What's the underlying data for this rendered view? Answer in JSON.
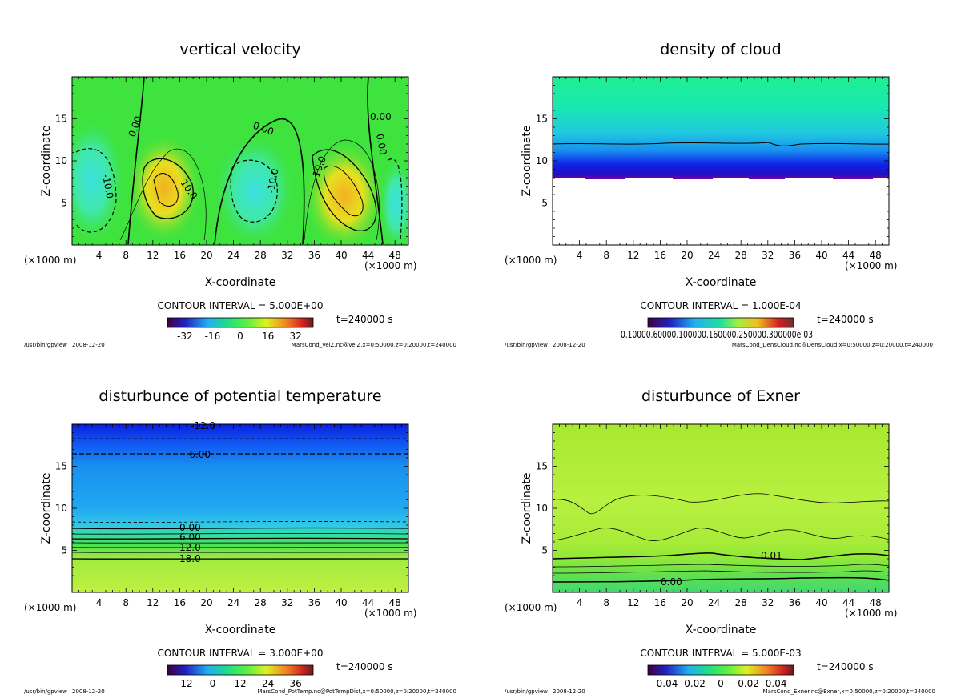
{
  "figure": {
    "app_path": "/usr/bin/gpview",
    "date": "2008-12-20",
    "x_unit_left": "(×1000 m)",
    "x_unit_right": "(×1000 m)"
  },
  "chart_data": [
    {
      "type": "heatmap",
      "title": "vertical velocity",
      "xlabel": "X-coordinate",
      "ylabel": "Z-coordinate",
      "xlim": [
        0,
        50
      ],
      "ylim": [
        0,
        20
      ],
      "xticks": [
        "4",
        "8",
        "12",
        "16",
        "20",
        "24",
        "28",
        "32",
        "36",
        "40",
        "44",
        "48"
      ],
      "yticks": [
        "5",
        "10",
        "15"
      ],
      "contour_interval": "CONTOUR INTERVAL = 5.000E+00",
      "time": "t=240000 s",
      "colorbar_ticks": [
        "-32",
        "-16",
        "0",
        "16",
        "32"
      ],
      "contour_labels": [
        "0.00",
        "0.00",
        "0.00",
        "0.00",
        "10.0",
        "10.0",
        "-10.0",
        "-10.0"
      ],
      "footer": "MarsCond_VelZ.nc@VelZ,x=0:50000,z=0:20000,t=240000",
      "colors": {
        "base": "#3ee33e",
        "high": "#f0c020",
        "low": "#40e8c8"
      }
    },
    {
      "type": "heatmap",
      "title": "density of cloud",
      "xlabel": "X-coordinate",
      "ylabel": "Z-coordinate",
      "xlim": [
        0,
        50
      ],
      "ylim": [
        0,
        20
      ],
      "xticks": [
        "4",
        "8",
        "12",
        "16",
        "20",
        "24",
        "28",
        "32",
        "36",
        "40",
        "44",
        "48"
      ],
      "yticks": [
        "5",
        "10",
        "15"
      ],
      "contour_interval": "CONTOUR INTERVAL = 1.000E-04",
      "time": "t=240000 s",
      "colorbar_ticks": [
        "0.10000.60000.100000.160000.250000.300000e-03"
      ],
      "contour_labels": [],
      "footer": "MarsCond_DensCloud.nc@DensCloud,x=0:50000,z=0:20000,t=240000",
      "colors": {
        "top": "#18f0a0",
        "mid": "#22c8e8",
        "base": "#1010e0",
        "edge": "#8000a0"
      }
    },
    {
      "type": "heatmap",
      "title": "disturbunce of potential temperature",
      "xlabel": "X-coordinate",
      "ylabel": "Z-coordinate",
      "xlim": [
        0,
        50
      ],
      "ylim": [
        0,
        20
      ],
      "xticks": [
        "4",
        "8",
        "12",
        "16",
        "20",
        "24",
        "28",
        "32",
        "36",
        "40",
        "44",
        "48"
      ],
      "yticks": [
        "5",
        "10",
        "15"
      ],
      "contour_interval": "CONTOUR INTERVAL = 3.000E+00",
      "time": "t=240000 s",
      "colorbar_ticks": [
        "-12",
        "0",
        "12",
        "24",
        "36"
      ],
      "contour_labels": [
        "-12.0",
        "-6.00",
        "0.00",
        "6.00",
        "12.0",
        "18.0"
      ],
      "footer": "MarsCond_PotTemp.nc@PotTempDist,x=0:50000,z=0:20000,t=240000",
      "colors": {
        "top": "#1030f0",
        "mid": "#1aa0f0",
        "low": "#40d870",
        "bottom": "#b8f040"
      }
    },
    {
      "type": "heatmap",
      "title": "disturbunce of Exner",
      "xlabel": "X-coordinate",
      "ylabel": "Z-coordinate",
      "xlim": [
        0,
        50
      ],
      "ylim": [
        0,
        20
      ],
      "xticks": [
        "4",
        "8",
        "12",
        "16",
        "20",
        "24",
        "28",
        "32",
        "36",
        "40",
        "44",
        "48"
      ],
      "yticks": [
        "5",
        "10",
        "15"
      ],
      "contour_interval": "CONTOUR INTERVAL = 5.000E-03",
      "time": "t=240000 s",
      "colorbar_ticks": [
        "-0.04",
        "-0.02",
        "0",
        "0.02",
        "0.04"
      ],
      "contour_labels": [
        "0.01",
        "0.00"
      ],
      "footer": "MarsCond_Exner.nc@Exner,x=0:50000,z=0:20000,t=240000",
      "colors": {
        "top": "#a0e830",
        "mid": "#b8f040",
        "low": "#90e838",
        "bottom": "#40d860"
      }
    }
  ]
}
